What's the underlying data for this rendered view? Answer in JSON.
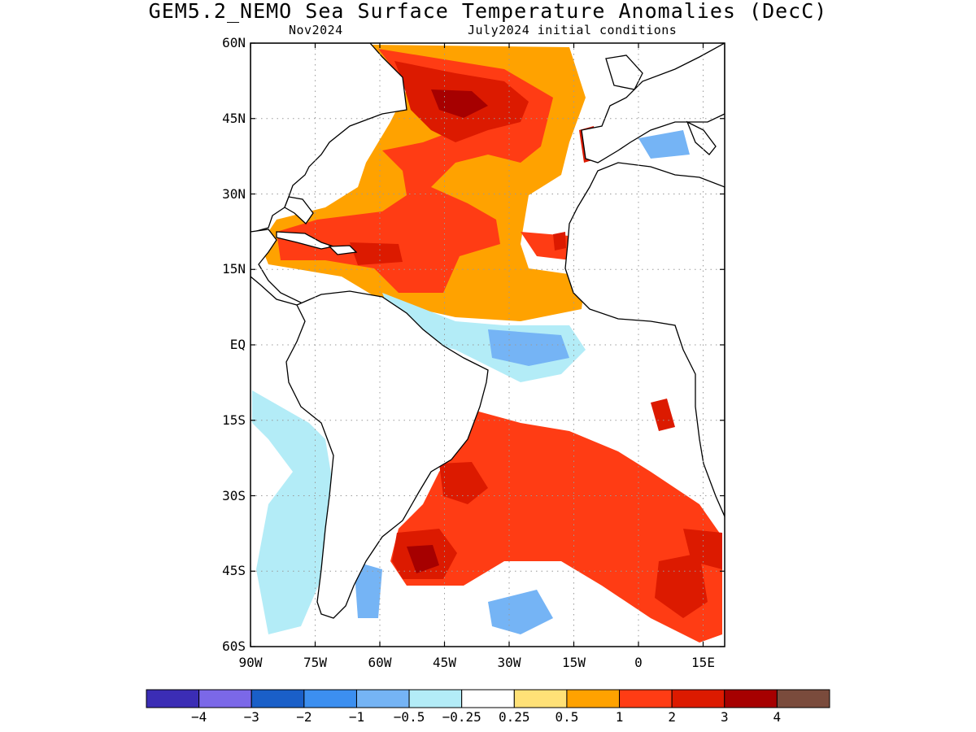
{
  "title": "GEM5.2_NEMO Sea Surface Temperature Anomalies (DecC)",
  "subtitle_left": "Nov2024",
  "subtitle_right": "July2024 initial conditions",
  "map": {
    "lon_range": [
      -90,
      20
    ],
    "lat_range": [
      -60,
      60
    ],
    "y_ticks": [
      "60N",
      "45N",
      "30N",
      "15N",
      "EQ",
      "15S",
      "30S",
      "45S",
      "60S"
    ],
    "x_ticks": [
      "90W",
      "75W",
      "60W",
      "45W",
      "30W",
      "15W",
      "0",
      "15E"
    ],
    "grid": true,
    "colors": {
      "land": "#ffffff",
      "coastline": "#000000",
      "grid": "#9a9a9a"
    },
    "anomaly_regions": [
      {
        "name": "north-atlantic-warm-band",
        "level": 0.5
      },
      {
        "name": "subtropical-atlantic-warm",
        "level": 1
      },
      {
        "name": "gulf-stream-extension-core",
        "level": 2
      },
      {
        "name": "gulf-stream-extension-peak",
        "level": 3
      },
      {
        "name": "caribbean-warm",
        "level": 2
      },
      {
        "name": "canary-coast-warm",
        "level": 2
      },
      {
        "name": "iberian-coast-warm",
        "level": 2
      },
      {
        "name": "mediterranean-cool",
        "level": -1
      },
      {
        "name": "equatorial-atlantic-cool",
        "level": -0.5
      },
      {
        "name": "equatorial-atlantic-cool-core",
        "level": -1
      },
      {
        "name": "south-american-coast-cool",
        "level": -0.5
      },
      {
        "name": "south-atlantic-warm",
        "level": 1
      },
      {
        "name": "brazil-current-warm",
        "level": 2
      },
      {
        "name": "argentine-basin-warm",
        "level": 2
      },
      {
        "name": "argentine-basin-peak",
        "level": 3
      },
      {
        "name": "south-atlantic-east-warm",
        "level": 2
      },
      {
        "name": "southern-ocean-cool",
        "level": -1
      }
    ]
  },
  "colorbar": {
    "ticks": [
      "-4",
      "-3",
      "-2",
      "-1",
      "-0.5",
      "-0.25",
      "0.25",
      "0.5",
      "1",
      "2",
      "3",
      "4"
    ],
    "colors": [
      "#3b2db5",
      "#7b68e8",
      "#1a5fc8",
      "#3c8ff0",
      "#75b4f5",
      "#b3ecf7",
      "#ffffff",
      "#ffe177",
      "#ffa200",
      "#ff3c14",
      "#dc1a00",
      "#a60000",
      "#7a4b3c"
    ]
  }
}
